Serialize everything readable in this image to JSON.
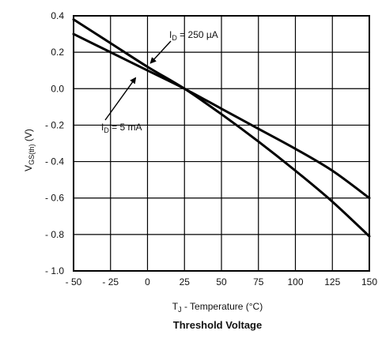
{
  "chart_data": {
    "type": "line",
    "title": "Threshold Voltage",
    "xlabel": "T",
    "xlabel_sub": "J",
    "xlabel_rest": " - Temperature (°C)",
    "ylabel": "V",
    "ylabel_sub": "GS(th)",
    "ylabel_unit": " (V)",
    "xlim": [
      -50,
      150
    ],
    "ylim": [
      -1.0,
      0.4
    ],
    "grid": true,
    "x_ticks": [
      -50,
      -25,
      0,
      25,
      50,
      75,
      100,
      125,
      150
    ],
    "x_tick_labels": [
      "- 50",
      "- 25",
      "0",
      "25",
      "50",
      "75",
      "100",
      "125",
      "150"
    ],
    "y_ticks": [
      0.4,
      0.2,
      0.0,
      -0.2,
      -0.4,
      -0.6,
      -0.8,
      -1.0
    ],
    "y_tick_labels": [
      "0.4",
      "0.2",
      "0.0",
      "- 0.2",
      "- 0.4",
      "- 0.6",
      "- 0.8",
      "- 1.0"
    ],
    "series": [
      {
        "name": "I_D = 250 µA",
        "label_main": "I",
        "label_sub": "D",
        "label_rest": " = 250  µA",
        "x": [
          -50,
          -25,
          0,
          25,
          50,
          75,
          100,
          125,
          150
        ],
        "values": [
          0.38,
          0.25,
          0.12,
          0.0,
          -0.14,
          -0.29,
          -0.45,
          -0.62,
          -0.81
        ]
      },
      {
        "name": "I_D = 5 mA",
        "label_main": "I",
        "label_sub": "D",
        "label_rest": " = 5 mA",
        "x": [
          -50,
          -25,
          0,
          25,
          50,
          75,
          100,
          125,
          150
        ],
        "values": [
          0.3,
          0.2,
          0.1,
          0.0,
          -0.11,
          -0.22,
          -0.33,
          -0.45,
          -0.6
        ]
      }
    ],
    "annotation_anchors": [
      {
        "x": 2.0,
        "y": 0.14
      },
      {
        "x": -8.0,
        "y": 0.06
      }
    ]
  }
}
